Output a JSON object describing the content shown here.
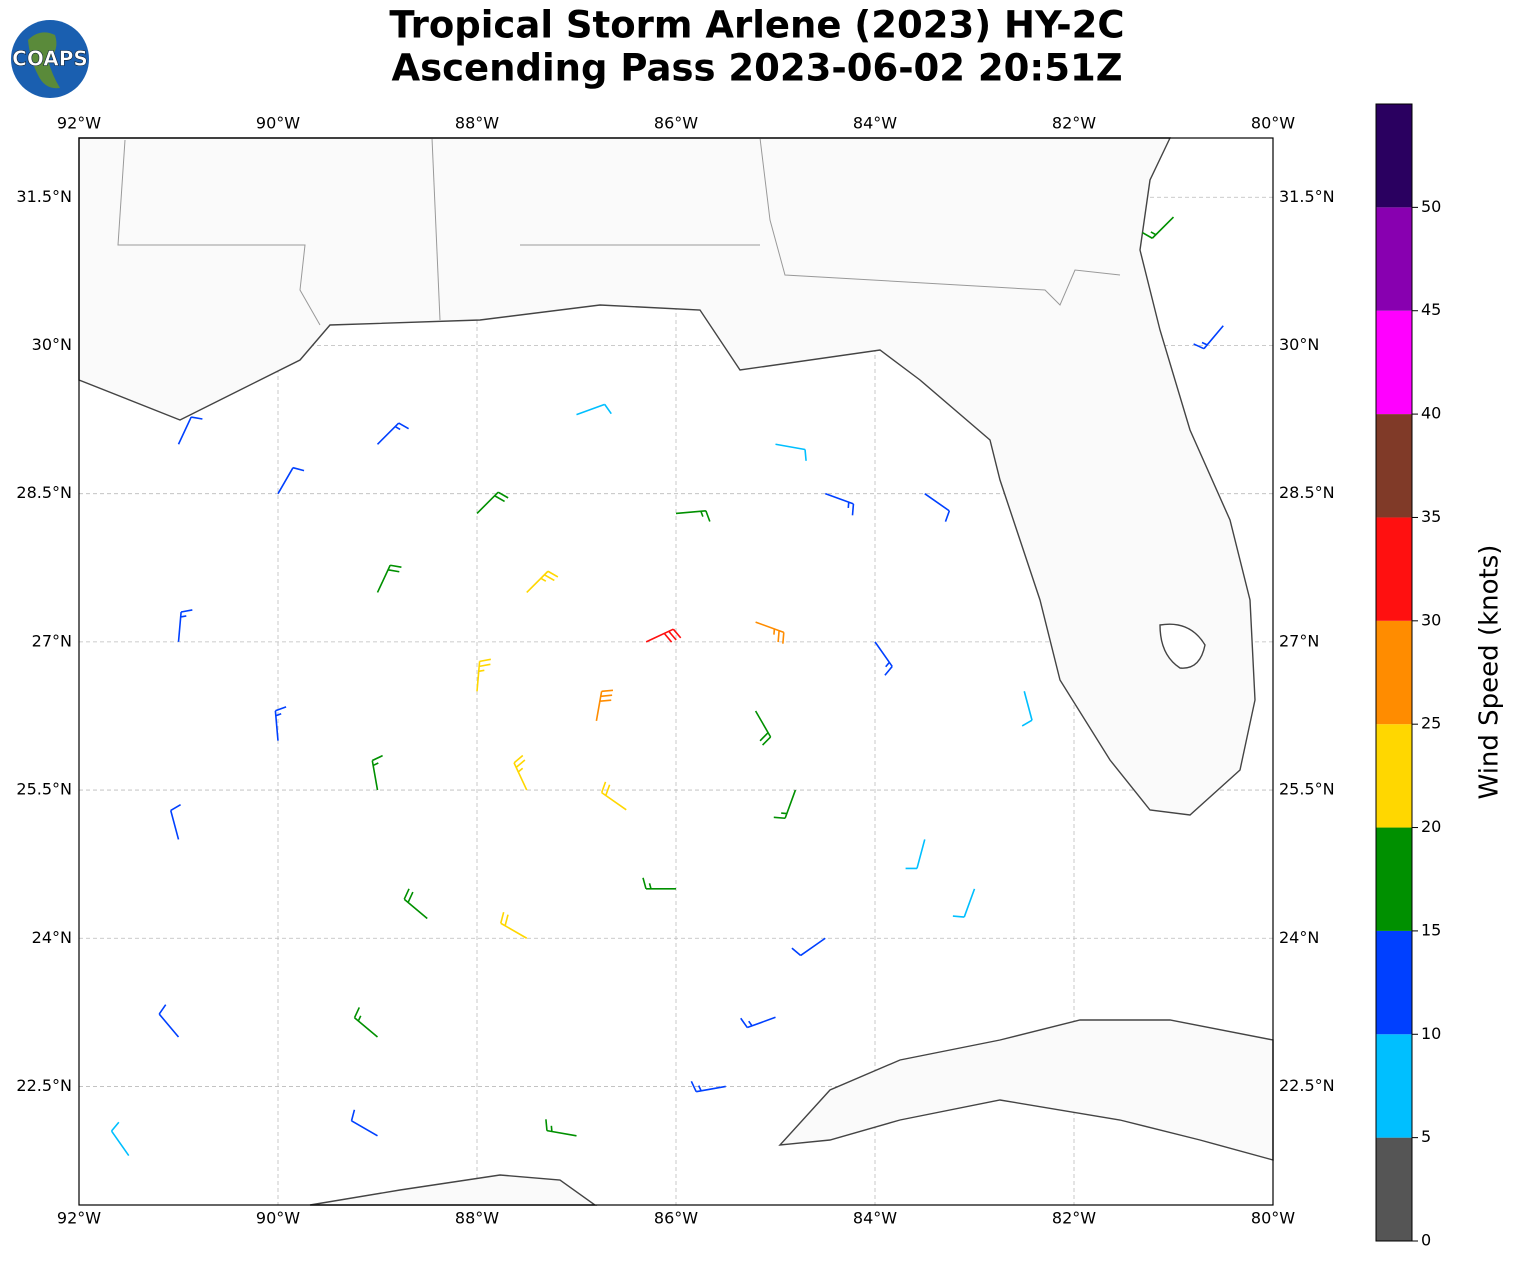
{
  "chart_data": {
    "type": "barb_map",
    "logo_text": "COAPS",
    "title": "Tropical Storm Arlene (2023) HY-2C",
    "subtitle": "Ascending Pass 2023-06-02 20:51Z",
    "xlim": [
      -92,
      -80
    ],
    "ylim": [
      21.3,
      32.1
    ],
    "xticks": [
      {
        "value": -92,
        "label": "92°W"
      },
      {
        "value": -90,
        "label": "90°W"
      },
      {
        "value": -88,
        "label": "88°W"
      },
      {
        "value": -86,
        "label": "86°W"
      },
      {
        "value": -84,
        "label": "84°W"
      },
      {
        "value": -82,
        "label": "82°W"
      },
      {
        "value": -80,
        "label": "80°W"
      }
    ],
    "yticks": [
      {
        "value": 22.5,
        "label": "22.5°N"
      },
      {
        "value": 24,
        "label": "24°N"
      },
      {
        "value": 25.5,
        "label": "25.5°N"
      },
      {
        "value": 27,
        "label": "27°N"
      },
      {
        "value": 28.5,
        "label": "28.5°N"
      },
      {
        "value": 30,
        "label": "30°N"
      },
      {
        "value": 31.5,
        "label": "31.5°N"
      }
    ],
    "grid": true,
    "colorbar": {
      "label": "Wind Speed (knots)",
      "lim": [
        0,
        55
      ],
      "bounds": [
        0,
        5,
        10,
        15,
        20,
        25,
        30,
        35,
        40,
        45,
        50,
        55
      ],
      "colors": [
        "#555555",
        "#00bfff",
        "#0040ff",
        "#009000",
        "#ffd700",
        "#ff8c00",
        "#ff1010",
        "#803a28",
        "#ff00ff",
        "#8800b0",
        "#2a0060"
      ],
      "ticks": [
        0,
        5,
        10,
        15,
        20,
        25,
        30,
        35,
        40,
        45,
        50
      ]
    },
    "barbs": {
      "lon": [
        -91,
        -89,
        -87,
        -85,
        -83.5,
        -91,
        -89,
        -87.5,
        -86.3,
        -85.2,
        -84,
        -82.5,
        -91,
        -89,
        -87.5,
        -86.8,
        -84.8,
        -83.5,
        -91,
        -89,
        -87.5,
        -86,
        -84.5,
        -91.5,
        -89,
        -87,
        -85.5,
        -90,
        -88,
        -86,
        -84.5,
        -85.2,
        -86.5,
        -85,
        -88,
        -90,
        -81,
        -80.5,
        -88.5,
        -83
      ],
      "lat": [
        29,
        29,
        29.3,
        29,
        28.5,
        27,
        27.5,
        27.5,
        27,
        27.2,
        27,
        26.5,
        25,
        25.5,
        25.5,
        26.2,
        25.5,
        25,
        23,
        23,
        24,
        24.5,
        24,
        21.8,
        22,
        22,
        22.5,
        28.5,
        28.3,
        28.3,
        28.5,
        26.3,
        25.3,
        23.2,
        26.5,
        26,
        31.3,
        30.2,
        24.2,
        24.5
      ],
      "speed": [
        12,
        13,
        8,
        9,
        12,
        13,
        18,
        23,
        32,
        27,
        13,
        8,
        12,
        17,
        23,
        28,
        17,
        8,
        12,
        17,
        22,
        17,
        12,
        8,
        12,
        17,
        13,
        12,
        18,
        17,
        13,
        18,
        22,
        13,
        23,
        14,
        17,
        13,
        18,
        8
      ],
      "direction": [
        25,
        45,
        70,
        100,
        125,
        5,
        25,
        45,
        65,
        110,
        145,
        165,
        345,
        350,
        335,
        10,
        200,
        195,
        320,
        310,
        300,
        270,
        235,
        325,
        300,
        280,
        260,
        30,
        45,
        85,
        110,
        150,
        305,
        250,
        5,
        355,
        225,
        220,
        310,
        200
      ]
    }
  }
}
